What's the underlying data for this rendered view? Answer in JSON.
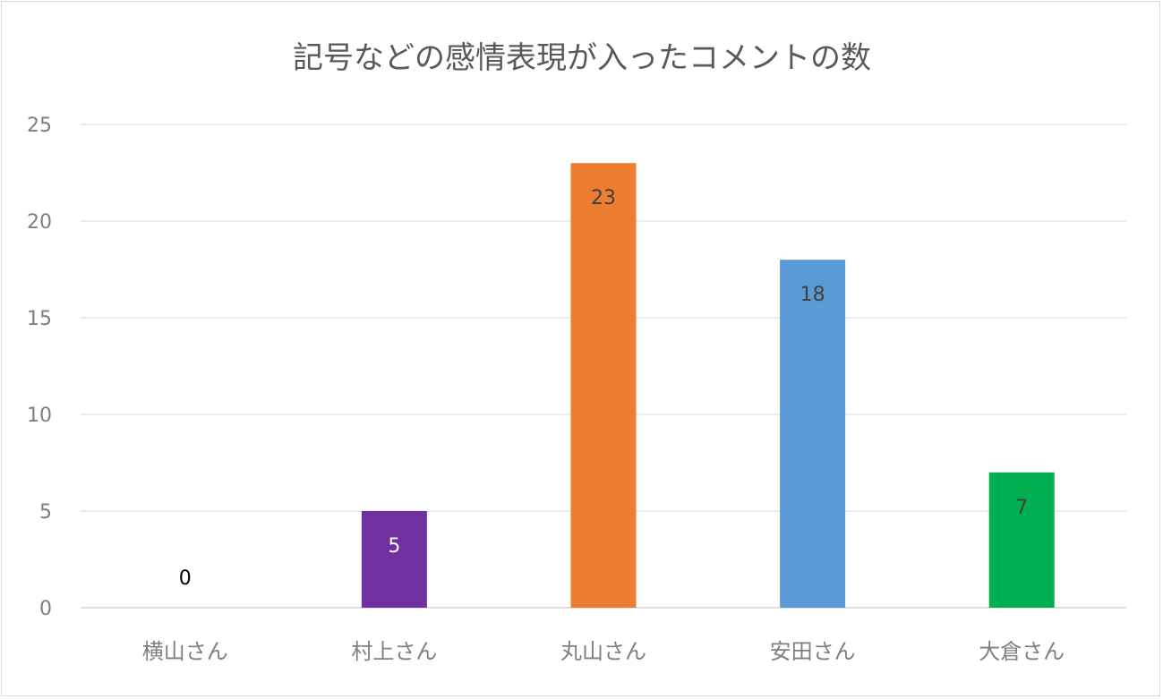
{
  "chart_data": {
    "type": "bar",
    "title": "記号などの感情表現が入ったコメントの数",
    "categories": [
      "横山さん",
      "村上さん",
      "丸山さん",
      "安田さん",
      "大倉さん"
    ],
    "values": [
      0,
      5,
      23,
      18,
      7
    ],
    "data_labels": [
      "0",
      "5",
      "23",
      "18",
      "7"
    ],
    "colors": [
      "#7F7F7F",
      "#7030A0",
      "#ED7D31",
      "#5B9BD5",
      "#00B050"
    ],
    "label_colors": [
      "#000000",
      "#FFFFFF",
      "#404040",
      "#404040",
      "#404040"
    ],
    "yticks": [
      "0",
      "5",
      "10",
      "15",
      "20",
      "25"
    ],
    "ylim": [
      0,
      25
    ],
    "grid": true,
    "xlabel": "",
    "ylabel": ""
  }
}
